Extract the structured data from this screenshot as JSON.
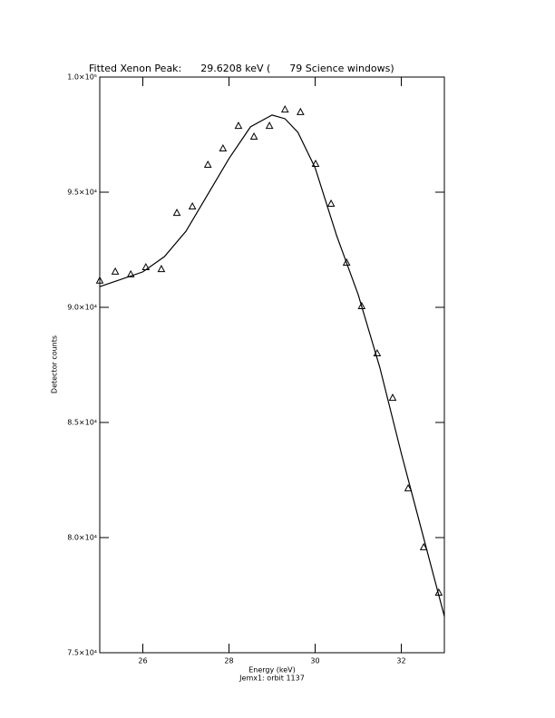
{
  "chart_data": {
    "type": "scatter",
    "title": "Fitted Xenon Peak:      29.6208 keV (      79 Science windows)",
    "x_label": "Energy (keV)",
    "subtitle": "Jemx1: orbit 1137",
    "y_label": "Detector counts",
    "xlim": [
      25,
      33
    ],
    "xticks": [
      26,
      28,
      30,
      32
    ],
    "ylim": [
      75000,
      100000
    ],
    "yticks": [
      {
        "value": 75000,
        "label": "7.5×10⁴"
      },
      {
        "value": 80000,
        "label": "8.0×10⁴"
      },
      {
        "value": 85000,
        "label": "8.5×10⁴"
      },
      {
        "value": 90000,
        "label": "9.0×10⁴"
      },
      {
        "value": 95000,
        "label": "9.5×10⁴"
      },
      {
        "value": 100000,
        "label": "1.0×10⁵"
      }
    ],
    "series": [
      {
        "kind": "points",
        "color": "#000000",
        "x": [
          25.0,
          25.36,
          25.72,
          26.07,
          26.43,
          26.79,
          27.15,
          27.51,
          27.86,
          28.22,
          28.58,
          28.94,
          29.3,
          29.66,
          30.01,
          30.37,
          30.73,
          31.08,
          31.44,
          31.8,
          32.16,
          32.52,
          32.87
        ],
        "values": [
          91150,
          91540,
          91420,
          91730,
          91650,
          94090,
          94370,
          96180,
          96890,
          97870,
          97400,
          97870,
          98580,
          98470,
          96220,
          94490,
          91930,
          90040,
          87990,
          86060,
          82130,
          79570,
          77600
        ]
      },
      {
        "kind": "line",
        "color": "#000000",
        "x": [
          25,
          26,
          26.5,
          27,
          27.5,
          28,
          28.5,
          29,
          29.3,
          29.6,
          30,
          30.5,
          31,
          31.5,
          32,
          32.5,
          33
        ],
        "values": [
          90900,
          91540,
          92200,
          93300,
          94880,
          96460,
          97840,
          98350,
          98190,
          97600,
          96060,
          93110,
          90550,
          87400,
          83660,
          80120,
          76580
        ]
      }
    ]
  }
}
